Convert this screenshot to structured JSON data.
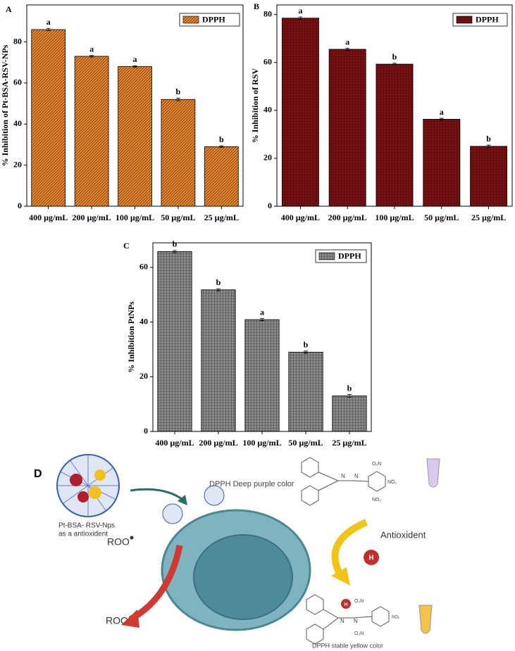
{
  "chart_data": [
    {
      "type": "bar",
      "panel_label": "A",
      "y_label": "% Inhibition of Pt-BSA-RSV-NPs",
      "categories": [
        "400 µg/mL",
        "200 µg/mL",
        "100 µg/mL",
        "50 µg/mL",
        "25 µg/mL"
      ],
      "series": [
        {
          "name": "DPPH",
          "color": "#f08a2c",
          "values": [
            86,
            73,
            68,
            52,
            29
          ],
          "errors": [
            0.6,
            0.4,
            0.4,
            0.6,
            0.4
          ]
        }
      ],
      "bar_labels": [
        "a",
        "a",
        "a",
        "b",
        "b"
      ],
      "hatch": "diagonal",
      "ylim": [
        0,
        98
      ],
      "yticks": [
        0,
        20,
        40,
        60,
        80
      ],
      "legend": "upper right"
    },
    {
      "type": "bar",
      "panel_label": "B",
      "y_label": "% Inhibition of RSV",
      "categories": [
        "400 µg/mL",
        "200 µg/mL",
        "100 µg/mL",
        "50 µg/mL",
        "25 µg/mL"
      ],
      "series": [
        {
          "name": "DPPH",
          "color": "#7a1010",
          "values": [
            78.5,
            65.5,
            59.3,
            36.3,
            25
          ],
          "errors": [
            0.5,
            0.4,
            0.4,
            0.4,
            0.5
          ]
        }
      ],
      "bar_labels": [
        "a",
        "a",
        "b",
        "a",
        "b"
      ],
      "hatch": "grid",
      "ylim": [
        0,
        84
      ],
      "yticks": [
        0,
        20,
        40,
        60,
        80
      ],
      "legend": "upper right"
    },
    {
      "type": "bar",
      "panel_label": "C",
      "y_label": "% Inhibition PtNPs",
      "categories": [
        "400 µg/mL",
        "200 µg/mL",
        "100 µg/mL",
        "50 µg/mL",
        "25 µg/mL"
      ],
      "series": [
        {
          "name": "DPPH",
          "color": "#8a8a8a",
          "values": [
            65.8,
            51.8,
            40.9,
            29,
            13
          ],
          "errors": [
            0.4,
            0.4,
            0.4,
            0.4,
            0.5
          ]
        }
      ],
      "bar_labels": [
        "b",
        "b",
        "a",
        "b",
        "b"
      ],
      "hatch": "grid",
      "ylim": [
        0,
        69
      ],
      "yticks": [
        0,
        20,
        40,
        60
      ],
      "legend": "upper right"
    }
  ],
  "diagram": {
    "panel_label": "D",
    "np_label_1": "Pt-BSA- RSV-Nps",
    "np_label_2": "as a antioxident",
    "dpph_purple": "DPPH Deep purple color",
    "dpph_yellow": "DPPH stable yellow color",
    "antioxidant": "Antioxident",
    "roo": "ROO",
    "rooh": "ROOH",
    "h1": "H",
    "h2": "H",
    "chem_top": [
      "O₂N",
      "NO₂",
      "NO₂",
      "N",
      "N"
    ],
    "chem_bottom": [
      "O₂N",
      "O₂N",
      "NO₂",
      "N",
      "N"
    ]
  }
}
